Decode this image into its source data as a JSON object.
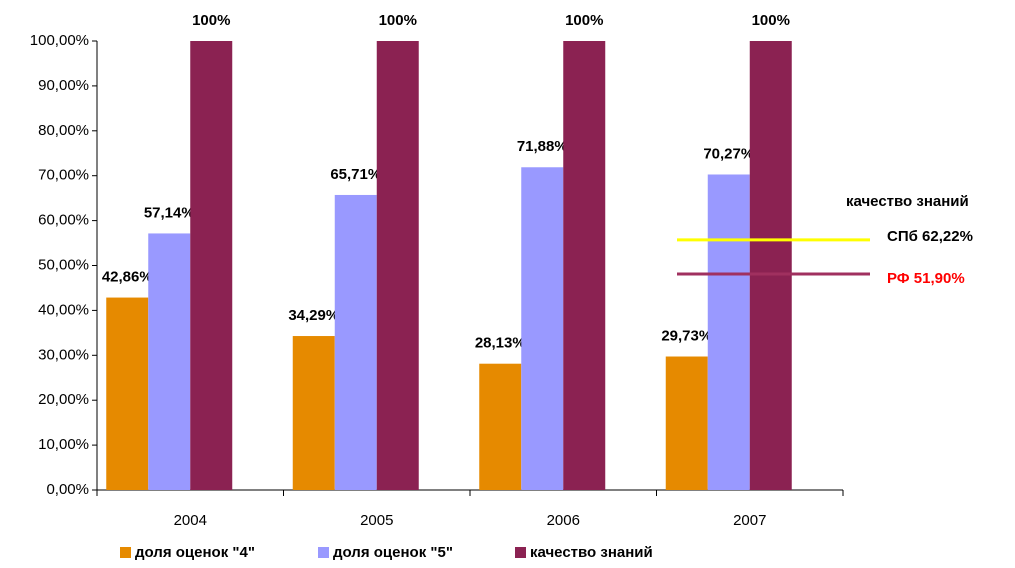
{
  "chart_data": {
    "type": "bar",
    "categories": [
      "2004",
      "2005",
      "2006",
      "2007"
    ],
    "series": [
      {
        "name": "доля оценок \"4\"",
        "color": "#e68a00",
        "values": [
          42.86,
          34.29,
          28.13,
          29.73
        ],
        "value_labels": [
          "42,86%",
          "34,29%",
          "28,13%",
          "29,73%"
        ]
      },
      {
        "name": "доля оценок \"5\"",
        "color": "#9999ff",
        "values": [
          57.14,
          65.71,
          71.88,
          70.27
        ],
        "value_labels": [
          "57,14%",
          "65,71%",
          "71,88%",
          "70,27%"
        ]
      },
      {
        "name": "качество знаний",
        "color": "#8b2252",
        "values": [
          100,
          100,
          100,
          100
        ],
        "value_labels": [
          "100%",
          "100%",
          "100%",
          "100%"
        ]
      }
    ],
    "ylim": [
      0,
      100
    ],
    "yticks": [
      {
        "value": 0,
        "label": "0,00%"
      },
      {
        "value": 10,
        "label": "10,00%"
      },
      {
        "value": 20,
        "label": "20,00%"
      },
      {
        "value": 30,
        "label": "30,00%"
      },
      {
        "value": 40,
        "label": "40,00%"
      },
      {
        "value": 50,
        "label": "50,00%"
      },
      {
        "value": 60,
        "label": "60,00%"
      },
      {
        "value": 70,
        "label": "70,00%"
      },
      {
        "value": 80,
        "label": "80,00%"
      },
      {
        "value": 90,
        "label": "90,00%"
      },
      {
        "value": 100,
        "label": "100,00%"
      }
    ],
    "reference_lines": [
      {
        "value": 55.7,
        "color": "#ffff00"
      },
      {
        "value": 48.1,
        "color": "#a0305f"
      }
    ],
    "annotations": [
      {
        "text": "качество знаний",
        "color": "#000000"
      },
      {
        "text": "СПб 62,22%",
        "color": "#000000"
      },
      {
        "text": "РФ 51,90%",
        "color": "#ff0000"
      }
    ],
    "legend": "bottom"
  }
}
